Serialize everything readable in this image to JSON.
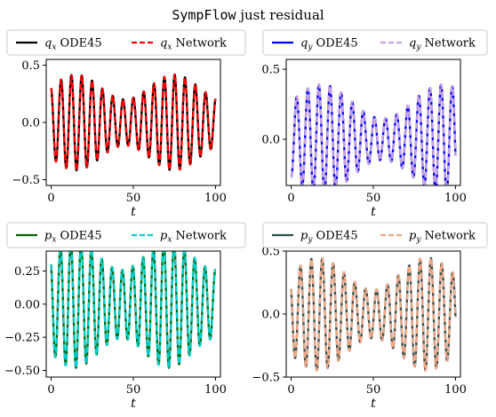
{
  "figure": {
    "title_mono": "SympFlow",
    "title_rest": " just residual"
  },
  "chart_data": [
    {
      "type": "line",
      "xlabel": "t",
      "xlim": [
        -3,
        103
      ],
      "ylim": [
        -0.55,
        0.55
      ],
      "xticks": [
        0,
        50,
        100
      ],
      "yticks": [
        -0.5,
        0.0,
        0.5
      ],
      "ytick_labels": [
        "−0.5",
        "0.0",
        "0.5"
      ],
      "legend": "top (outside)",
      "grid": false,
      "signal": {
        "amp": 0.31,
        "start": 0.3,
        "mod": 0.35,
        "freq": 1.0,
        "mfreq": 0.105
      },
      "series": [
        {
          "name": "q_x ODE45",
          "sym": "q",
          "sub": "x",
          "suffix": "ODE45",
          "color": "#000000",
          "style": "solid"
        },
        {
          "name": "q_x Network",
          "sym": "q",
          "sub": "x",
          "suffix": "Network",
          "color": "#ff0000",
          "style": "dashed"
        }
      ]
    },
    {
      "type": "line",
      "xlabel": "t",
      "xlim": [
        -3,
        103
      ],
      "ylim": [
        -0.33,
        0.57
      ],
      "xticks": [
        0,
        50,
        100
      ],
      "yticks": [
        0.0,
        0.5
      ],
      "ytick_labels": [
        "0.0",
        "0.5"
      ],
      "legend": "top (outside)",
      "grid": false,
      "signal": {
        "amp": 0.27,
        "start": -0.3,
        "mod": 0.45,
        "freq": 0.93,
        "mfreq": 0.085
      },
      "series": [
        {
          "name": "q_y ODE45",
          "sym": "q",
          "sub": "y",
          "suffix": "ODE45",
          "color": "#0000ff",
          "style": "solid"
        },
        {
          "name": "q_y Network",
          "sym": "q",
          "sub": "y",
          "suffix": "Network",
          "color": "#c9a0dc",
          "style": "dashed"
        }
      ]
    },
    {
      "type": "line",
      "xlabel": "t",
      "xlim": [
        -3,
        103
      ],
      "ylim": [
        -0.55,
        0.4
      ],
      "xticks": [
        0,
        50,
        100
      ],
      "yticks": [
        -0.5,
        -0.25,
        0.0,
        0.25
      ],
      "ytick_labels": [
        "−0.50",
        "−0.25",
        "0.00",
        "0.25"
      ],
      "legend": "top (outside)",
      "grid": false,
      "signal": {
        "amp": 0.37,
        "start": 0.3,
        "mod": 0.3,
        "freq": 1.0,
        "mfreq": 0.11
      },
      "series": [
        {
          "name": "p_x ODE45",
          "sym": "p",
          "sub": "x",
          "suffix": "ODE45",
          "color": "#006400",
          "style": "solid"
        },
        {
          "name": "p_x Network",
          "sym": "p",
          "sub": "x",
          "suffix": "Network",
          "color": "#00ced1",
          "style": "dashed"
        }
      ]
    },
    {
      "type": "line",
      "xlabel": "t",
      "xlim": [
        -3,
        103
      ],
      "ylim": [
        -0.5,
        0.5
      ],
      "xticks": [
        0,
        50,
        100
      ],
      "yticks": [
        -0.5,
        0.0,
        0.5
      ],
      "ytick_labels": [
        "−0.5",
        "0.0",
        "0.5"
      ],
      "legend": "top (outside)",
      "grid": false,
      "signal": {
        "amp": 0.32,
        "start": 0.2,
        "mod": 0.4,
        "freq": 0.95,
        "mfreq": 0.095
      },
      "series": [
        {
          "name": "p_y ODE45",
          "sym": "p",
          "sub": "y",
          "suffix": "ODE45",
          "color": "#2f4f4f",
          "style": "solid"
        },
        {
          "name": "p_y Network",
          "sym": "p",
          "sub": "y",
          "suffix": "Network",
          "color": "#f4a582",
          "style": "dashed"
        }
      ]
    }
  ]
}
